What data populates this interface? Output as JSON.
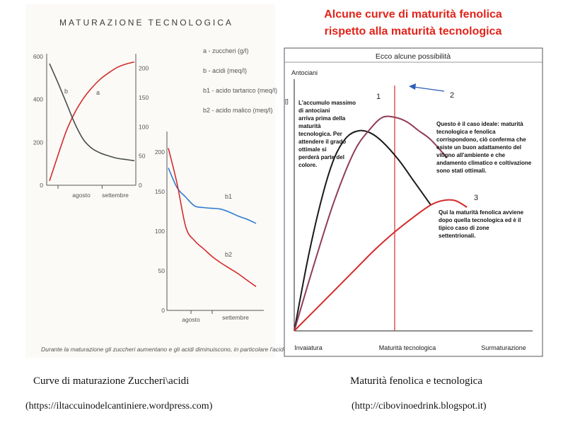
{
  "left": {
    "title": "MATURAZIONE TECNOLOGICA",
    "legend": [
      "a - zuccheri (g/l)",
      "b - acidi (meq/l)",
      "b1 - acido tartarico (meq/l)",
      "b2 - acido malico (meq/l)"
    ],
    "footnote": "Durante la maturazione gli zuccheri aumentano e gli acidi diminuiscono, in particolare l'acido malico.",
    "caption": "Curve di maturazione   Zuccheri\\acidi",
    "source": "(https://iltaccuinodelcantiniere.wordpress.com)"
  },
  "right": {
    "title_line1": "Alcune curve di maturità fenolica",
    "title_line2": "rispetto alla maturità tecnologica",
    "caption": "Maturità fenolica e tecnologica",
    "source": "(http://cibovinoedrink.blogspot.it)"
  },
  "colors": {
    "red": "#d42b2b",
    "dark": "#4a4f4a",
    "blue": "#2e7bd0",
    "maroon": "#8f3b56",
    "black": "#1a1a1a"
  },
  "chart_data": [
    {
      "type": "line",
      "title": "",
      "xlabel": "",
      "ylabel": "",
      "x_ticks": [
        "agosto",
        "settembre"
      ],
      "y_left_ticks": [
        0,
        200,
        400,
        600
      ],
      "y_right_ticks": [
        0,
        50,
        100,
        150,
        200
      ],
      "y_left_lim": [
        0,
        600
      ],
      "y_right_lim": [
        0,
        220
      ],
      "series": [
        {
          "name": "a",
          "axis": "left",
          "color": "#d42b2b",
          "x": [
            0.0,
            0.1,
            0.2,
            0.3,
            0.4,
            0.5,
            0.6,
            0.7,
            0.8,
            0.9,
            1.0
          ],
          "values": [
            20,
            140,
            255,
            340,
            405,
            455,
            495,
            525,
            550,
            565,
            575
          ]
        },
        {
          "name": "b",
          "axis": "right",
          "color": "#4a4f4a",
          "x": [
            0.0,
            0.1,
            0.2,
            0.3,
            0.4,
            0.5,
            0.6,
            0.7,
            0.8,
            0.9,
            1.0
          ],
          "values": [
            208,
            175,
            140,
            105,
            78,
            63,
            55,
            50,
            46,
            44,
            42
          ]
        }
      ]
    },
    {
      "type": "line",
      "title": "",
      "xlabel": "",
      "ylabel": "",
      "x_ticks": [
        "agosto",
        "settembre"
      ],
      "y_ticks": [
        0,
        50,
        100,
        150,
        200
      ],
      "ylim": [
        0,
        210
      ],
      "series": [
        {
          "name": "b1",
          "color": "#2e7bd0",
          "x": [
            0.0,
            0.1,
            0.2,
            0.3,
            0.4,
            0.5,
            0.6,
            0.7,
            0.8,
            0.9,
            1.0
          ],
          "values": [
            180,
            155,
            143,
            132,
            130,
            129,
            128,
            124,
            119,
            115,
            110
          ]
        },
        {
          "name": "b2",
          "color": "#d42b2b",
          "x": [
            0.0,
            0.1,
            0.2,
            0.3,
            0.4,
            0.5,
            0.6,
            0.7,
            0.8,
            0.9,
            1.0
          ],
          "values": [
            205,
            160,
            105,
            88,
            78,
            68,
            60,
            53,
            46,
            38,
            30
          ]
        }
      ]
    },
    {
      "type": "line",
      "title": "Ecco alcune possibilità",
      "ylabel": "Antociani",
      "y_unit_label": "[]",
      "x_ticks": [
        "Invaiatura",
        "Maturità tecnologica",
        "Surmaturazione"
      ],
      "tecnologica_x": 0.5,
      "series": [
        {
          "name": "1",
          "color": "#1a1a1a",
          "x": [
            0.0,
            0.07,
            0.14,
            0.2,
            0.26,
            0.32,
            0.38,
            0.44,
            0.52,
            0.6,
            0.68
          ],
          "values": [
            0.0,
            0.33,
            0.6,
            0.77,
            0.86,
            0.89,
            0.88,
            0.84,
            0.76,
            0.66,
            0.56
          ]
        },
        {
          "name": "2",
          "color": "#8f3b56",
          "x": [
            0.0,
            0.1,
            0.2,
            0.3,
            0.38,
            0.44,
            0.5,
            0.56,
            0.62,
            0.68,
            0.76
          ],
          "values": [
            0.0,
            0.3,
            0.58,
            0.8,
            0.9,
            0.95,
            0.95,
            0.93,
            0.89,
            0.85,
            0.77
          ]
        },
        {
          "name": "3",
          "color": "#d42b2b",
          "x": [
            0.0,
            0.1,
            0.2,
            0.3,
            0.4,
            0.5,
            0.6,
            0.68,
            0.74,
            0.8,
            0.86
          ],
          "values": [
            0.0,
            0.09,
            0.18,
            0.27,
            0.36,
            0.44,
            0.51,
            0.56,
            0.58,
            0.58,
            0.55
          ]
        }
      ],
      "labels": [
        "1",
        "2",
        "3"
      ],
      "annotations": [
        "L'accumulo massimo di antociani arriva prima della maturità tecnologica. Per attendere il grado ottimale si perderà parte del colore.",
        "Questo è il caso ideale: maturità tecnologica e fenolica corrispondono, ciò conferma che esiste un buon adattamento del vitigno all'ambiente e che andamento climatico e coltivazione sono stati ottimali.",
        "Qui la maturità fenolica avviene dopo quella tecnologica ed è il tipico caso di zone settentrionali."
      ]
    }
  ]
}
